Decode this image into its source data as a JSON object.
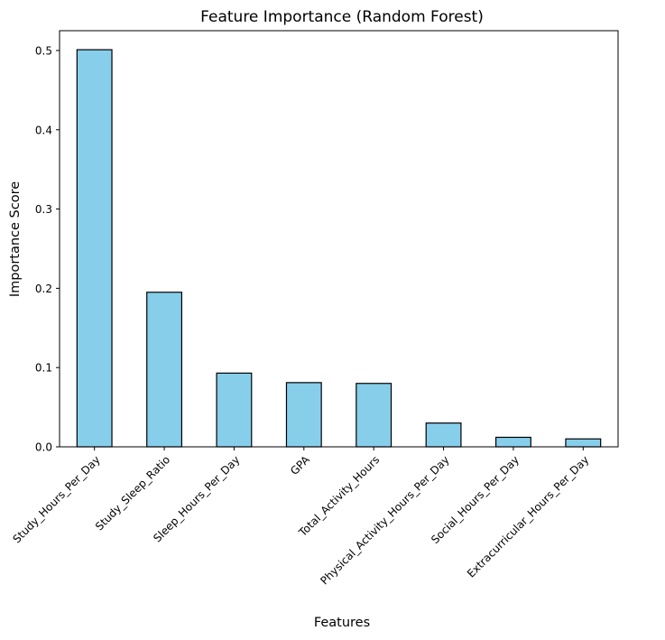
{
  "chart_data": {
    "type": "bar",
    "title": "Feature Importance (Random Forest)",
    "xlabel": "Features",
    "ylabel": "Importance Score",
    "categories": [
      "Study_Hours_Per_Day",
      "Study_Sleep_Ratio",
      "Sleep_Hours_Per_Day",
      "GPA",
      "Total_Activity_Hours",
      "Physical_Activity_Hours_Per_Day",
      "Social_Hours_Per_Day",
      "Extracurricular_Hours_Per_Day"
    ],
    "values": [
      0.501,
      0.195,
      0.093,
      0.081,
      0.08,
      0.03,
      0.012,
      0.01
    ],
    "ylim": [
      0,
      0.525
    ],
    "yticks": [
      0.0,
      0.1,
      0.2,
      0.3,
      0.4,
      0.5
    ],
    "ytick_labels": [
      "0.0",
      "0.1",
      "0.2",
      "0.3",
      "0.4",
      "0.5"
    ],
    "bar_color": "#87ceeb",
    "edge_color": "#000000",
    "grid": false,
    "legend": "none"
  }
}
